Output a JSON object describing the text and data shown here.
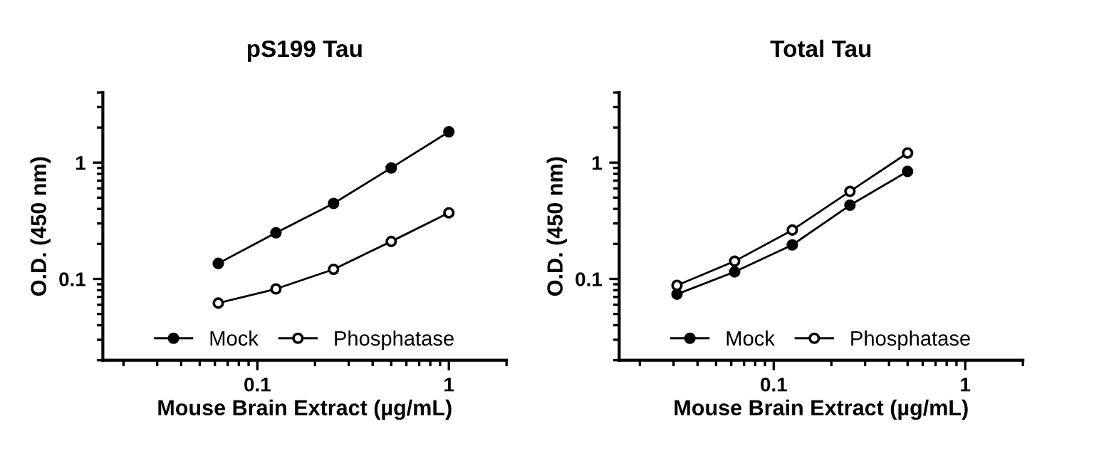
{
  "chart_data": [
    {
      "type": "line",
      "title": "pS199 Tau",
      "xlabel": "Mouse Brain Extract (µg/mL)",
      "ylabel": "O.D. (450 nm)",
      "log": "xy",
      "xlim": [
        0.0156,
        2
      ],
      "ylim": [
        0.02,
        4
      ],
      "xticks": [
        0.1,
        1
      ],
      "yticks": [
        0.1,
        1
      ],
      "x": [
        0.0625,
        0.125,
        0.25,
        0.5,
        1
      ],
      "legend": "bottom",
      "marker": "circle",
      "line_style": "solid",
      "grid": false,
      "series": [
        {
          "name": "Mock",
          "color": "#000000",
          "values": [
            0.136,
            0.249,
            0.446,
            0.9,
            1.84
          ]
        },
        {
          "name": "Phosphatase",
          "color": "#000000",
          "values": [
            0.062,
            0.082,
            0.121,
            0.21,
            0.37
          ]
        }
      ]
    },
    {
      "type": "line",
      "title": "Total Tau",
      "xlabel": "Mouse Brain Extract (µg/mL)",
      "ylabel": "O.D. (450 nm)",
      "log": "xy",
      "xlim": [
        0.0156,
        2
      ],
      "ylim": [
        0.02,
        4
      ],
      "xticks": [
        0.1,
        1
      ],
      "yticks": [
        0.1,
        1
      ],
      "x": [
        0.03125,
        0.0625,
        0.125,
        0.25,
        0.5
      ],
      "legend": "bottom",
      "marker": "circle",
      "line_style": "solid",
      "grid": false,
      "series": [
        {
          "name": "Mock",
          "color": "#000000",
          "values": [
            0.074,
            0.115,
            0.196,
            0.43,
            0.84
          ]
        },
        {
          "name": "Phosphatase",
          "color": "#000000",
          "values": [
            0.088,
            0.142,
            0.263,
            0.566,
            1.21
          ]
        }
      ]
    }
  ]
}
